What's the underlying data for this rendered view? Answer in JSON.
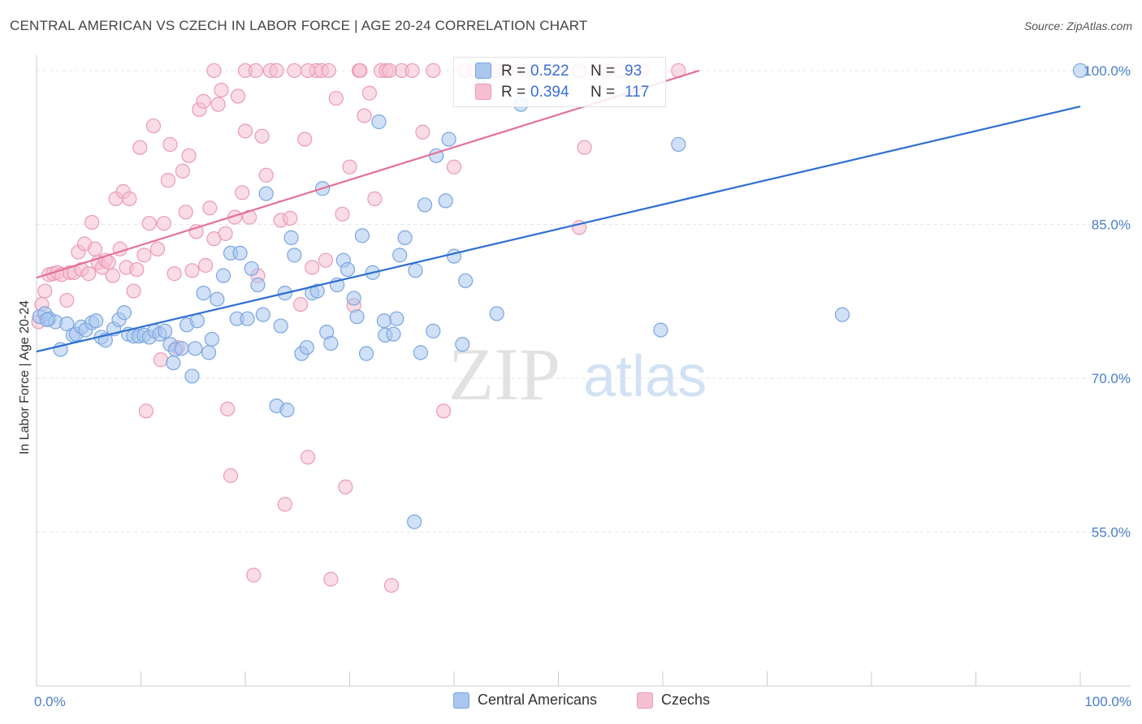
{
  "title": "CENTRAL AMERICAN VS CZECH IN LABOR FORCE | AGE 20-24 CORRELATION CHART",
  "source": "Source: ZipAtlas.com",
  "watermark": {
    "zip": "ZIP",
    "atlas": "atlas"
  },
  "legend_box": {
    "rows": [
      {
        "r_label": "R =",
        "r_value": "0.522",
        "n_label": "N =",
        "n_value": "93"
      },
      {
        "r_label": "R =",
        "r_value": "0.394",
        "n_label": "N =",
        "n_value": "117"
      }
    ]
  },
  "legend_bottom": {
    "items": [
      "Central Americans",
      "Czechs"
    ]
  },
  "colors": {
    "blue_fill": "#a9c6ee",
    "blue_stroke": "#7aa6e0",
    "blue_line": "#2e6fd0",
    "pink_fill": "#f6bfd0",
    "pink_stroke": "#eb9ab5",
    "pink_line": "#e4719a",
    "axis_text": "#4a7fc9",
    "grid": "#e6e6e6"
  },
  "chart_data": {
    "type": "scatter",
    "title": "CENTRAL AMERICAN VS CZECH IN LABOR FORCE | AGE 20-24 CORRELATION CHART",
    "xlabel": "",
    "ylabel": "In Labor Force | Age 20-24",
    "xlim": [
      0,
      100
    ],
    "ylim": [
      40,
      101.5
    ],
    "x_ticks": [
      "0.0%",
      "100.0%"
    ],
    "y_ticks": [
      {
        "value": 100,
        "label": "100.0%"
      },
      {
        "value": 85,
        "label": "85.0%"
      },
      {
        "value": 70,
        "label": "70.0%"
      },
      {
        "value": 55,
        "label": "55.0%"
      }
    ],
    "grid": true,
    "legend_position": "top-center",
    "series": [
      {
        "name": "Central Americans",
        "R": 0.522,
        "N": 93,
        "trend": {
          "x": [
            0,
            100
          ],
          "y": [
            72.6,
            96.5
          ]
        },
        "points": [
          [
            0.3,
            76.0
          ],
          [
            0.8,
            76.3
          ],
          [
            1.2,
            75.8
          ],
          [
            1.8,
            75.5
          ],
          [
            2.3,
            72.8
          ],
          [
            2.9,
            75.3
          ],
          [
            3.5,
            74.2
          ],
          [
            3.8,
            74.3
          ],
          [
            4.3,
            75.0
          ],
          [
            4.7,
            74.7
          ],
          [
            5.3,
            75.4
          ],
          [
            5.7,
            75.6
          ],
          [
            6.2,
            74.0
          ],
          [
            6.6,
            73.7
          ],
          [
            7.4,
            74.8
          ],
          [
            7.9,
            75.7
          ],
          [
            8.4,
            76.4
          ],
          [
            8.8,
            74.3
          ],
          [
            9.3,
            74.1
          ],
          [
            9.8,
            74.1
          ],
          [
            10.3,
            74.2
          ],
          [
            10.8,
            74.0
          ],
          [
            11.3,
            74.6
          ],
          [
            11.8,
            74.3
          ],
          [
            12.3,
            74.6
          ],
          [
            12.8,
            73.3
          ],
          [
            13.1,
            71.5
          ],
          [
            13.3,
            72.8
          ],
          [
            13.9,
            72.9
          ],
          [
            14.4,
            75.2
          ],
          [
            14.9,
            70.2
          ],
          [
            15.4,
            75.6
          ],
          [
            16.0,
            78.3
          ],
          [
            16.5,
            72.5
          ],
          [
            16.8,
            73.8
          ],
          [
            17.3,
            77.7
          ],
          [
            17.9,
            80.0
          ],
          [
            18.6,
            82.2
          ],
          [
            19.2,
            75.8
          ],
          [
            19.5,
            82.2
          ],
          [
            20.2,
            75.8
          ],
          [
            20.6,
            80.7
          ],
          [
            21.2,
            79.1
          ],
          [
            21.7,
            76.2
          ],
          [
            22.0,
            88.0
          ],
          [
            23.0,
            67.3
          ],
          [
            23.4,
            75.1
          ],
          [
            23.8,
            78.3
          ],
          [
            24.4,
            83.7
          ],
          [
            24.7,
            82.0
          ],
          [
            25.4,
            72.4
          ],
          [
            25.9,
            73.0
          ],
          [
            26.4,
            78.3
          ],
          [
            26.9,
            78.5
          ],
          [
            27.4,
            88.5
          ],
          [
            27.8,
            74.5
          ],
          [
            28.2,
            73.4
          ],
          [
            28.8,
            79.1
          ],
          [
            29.4,
            81.5
          ],
          [
            29.8,
            80.6
          ],
          [
            30.4,
            77.8
          ],
          [
            30.7,
            76.0
          ],
          [
            31.2,
            83.9
          ],
          [
            31.6,
            72.4
          ],
          [
            32.2,
            80.3
          ],
          [
            32.8,
            95.0
          ],
          [
            33.3,
            75.6
          ],
          [
            33.4,
            74.2
          ],
          [
            34.2,
            74.3
          ],
          [
            34.5,
            75.8
          ],
          [
            34.8,
            82.0
          ],
          [
            35.3,
            83.7
          ],
          [
            36.3,
            80.5
          ],
          [
            36.8,
            72.5
          ],
          [
            37.2,
            86.9
          ],
          [
            38.0,
            74.6
          ],
          [
            38.3,
            91.7
          ],
          [
            39.2,
            87.3
          ],
          [
            39.5,
            93.3
          ],
          [
            40.0,
            81.9
          ],
          [
            40.8,
            73.3
          ],
          [
            41.1,
            79.5
          ],
          [
            42.5,
            98.5
          ],
          [
            44.1,
            76.3
          ],
          [
            46.4,
            96.7
          ],
          [
            59.8,
            74.7
          ],
          [
            61.5,
            92.8
          ],
          [
            77.2,
            76.2
          ],
          [
            100.0,
            100.0
          ],
          [
            24.0,
            66.9
          ],
          [
            36.2,
            56.0
          ],
          [
            15.2,
            72.9
          ],
          [
            1.0,
            75.7
          ]
        ]
      },
      {
        "name": "Czechs",
        "R": 0.394,
        "N": 117,
        "trend": {
          "x": [
            0,
            63.5
          ],
          "y": [
            79.8,
            100.0
          ]
        },
        "points": [
          [
            0.2,
            75.5
          ],
          [
            0.5,
            77.2
          ],
          [
            0.8,
            78.5
          ],
          [
            1.2,
            80.1
          ],
          [
            1.6,
            80.2
          ],
          [
            2.0,
            80.3
          ],
          [
            2.4,
            80.1
          ],
          [
            2.9,
            77.6
          ],
          [
            3.2,
            80.3
          ],
          [
            3.6,
            80.3
          ],
          [
            4.0,
            82.3
          ],
          [
            4.3,
            80.6
          ],
          [
            4.6,
            83.1
          ],
          [
            5.0,
            80.2
          ],
          [
            5.3,
            85.2
          ],
          [
            5.6,
            82.6
          ],
          [
            5.9,
            81.3
          ],
          [
            6.3,
            80.8
          ],
          [
            6.6,
            81.5
          ],
          [
            6.9,
            81.3
          ],
          [
            7.3,
            80.0
          ],
          [
            7.6,
            87.5
          ],
          [
            8.0,
            82.6
          ],
          [
            8.3,
            88.2
          ],
          [
            8.6,
            80.8
          ],
          [
            8.9,
            87.5
          ],
          [
            9.3,
            78.5
          ],
          [
            9.6,
            80.6
          ],
          [
            9.9,
            92.5
          ],
          [
            10.3,
            82.0
          ],
          [
            10.5,
            66.8
          ],
          [
            10.8,
            85.1
          ],
          [
            11.2,
            94.6
          ],
          [
            11.6,
            82.6
          ],
          [
            11.9,
            71.8
          ],
          [
            12.2,
            85.1
          ],
          [
            12.6,
            89.3
          ],
          [
            12.8,
            92.8
          ],
          [
            13.2,
            80.2
          ],
          [
            13.5,
            73.0
          ],
          [
            14.0,
            90.2
          ],
          [
            14.3,
            86.2
          ],
          [
            14.6,
            91.7
          ],
          [
            14.9,
            80.5
          ],
          [
            15.3,
            84.3
          ],
          [
            15.6,
            96.2
          ],
          [
            16.0,
            97.0
          ],
          [
            16.2,
            81.0
          ],
          [
            16.6,
            86.6
          ],
          [
            17.0,
            83.6
          ],
          [
            17.4,
            96.7
          ],
          [
            17.7,
            98.1
          ],
          [
            18.1,
            84.1
          ],
          [
            18.3,
            67.0
          ],
          [
            18.6,
            60.5
          ],
          [
            19.0,
            85.7
          ],
          [
            19.3,
            97.5
          ],
          [
            19.7,
            88.1
          ],
          [
            20.0,
            94.1
          ],
          [
            20.4,
            85.7
          ],
          [
            20.8,
            50.8
          ],
          [
            21.2,
            80.0
          ],
          [
            21.6,
            93.6
          ],
          [
            22.0,
            89.8
          ],
          [
            22.4,
            100.0
          ],
          [
            23.0,
            100.0
          ],
          [
            23.4,
            85.4
          ],
          [
            23.8,
            57.7
          ],
          [
            24.3,
            85.6
          ],
          [
            24.7,
            100.0
          ],
          [
            25.3,
            77.2
          ],
          [
            25.7,
            93.3
          ],
          [
            26.0,
            62.3
          ],
          [
            26.4,
            80.8
          ],
          [
            26.8,
            100.0
          ],
          [
            27.3,
            100.0
          ],
          [
            27.7,
            81.5
          ],
          [
            28.2,
            50.4
          ],
          [
            28.7,
            97.3
          ],
          [
            29.3,
            86.0
          ],
          [
            29.6,
            59.4
          ],
          [
            30.0,
            90.6
          ],
          [
            30.4,
            77.1
          ],
          [
            30.9,
            100.0
          ],
          [
            31.4,
            95.6
          ],
          [
            31.9,
            97.8
          ],
          [
            32.4,
            87.5
          ],
          [
            33.0,
            100.0
          ],
          [
            33.5,
            100.0
          ],
          [
            34.0,
            49.8
          ],
          [
            35.0,
            100.0
          ],
          [
            36.0,
            100.0
          ],
          [
            37.0,
            94.0
          ],
          [
            38.0,
            100.0
          ],
          [
            39.0,
            66.8
          ],
          [
            40.0,
            90.6
          ],
          [
            41.0,
            100.0
          ],
          [
            42.0,
            100.0
          ],
          [
            43.0,
            100.0
          ],
          [
            44.0,
            100.0
          ],
          [
            45.0,
            100.0
          ],
          [
            47.0,
            100.0
          ],
          [
            49.5,
            100.0
          ],
          [
            52.0,
            100.0
          ],
          [
            52.5,
            92.5
          ],
          [
            54.5,
            100.0
          ],
          [
            56.0,
            100.0
          ],
          [
            58.0,
            100.0
          ],
          [
            61.5,
            100.0
          ],
          [
            17.0,
            100.0
          ],
          [
            20.0,
            100.0
          ],
          [
            21.0,
            100.0
          ],
          [
            26.0,
            100.0
          ],
          [
            28.0,
            100.0
          ],
          [
            31.0,
            100.0
          ],
          [
            33.8,
            100.0
          ],
          [
            52.0,
            84.7
          ]
        ]
      }
    ]
  }
}
